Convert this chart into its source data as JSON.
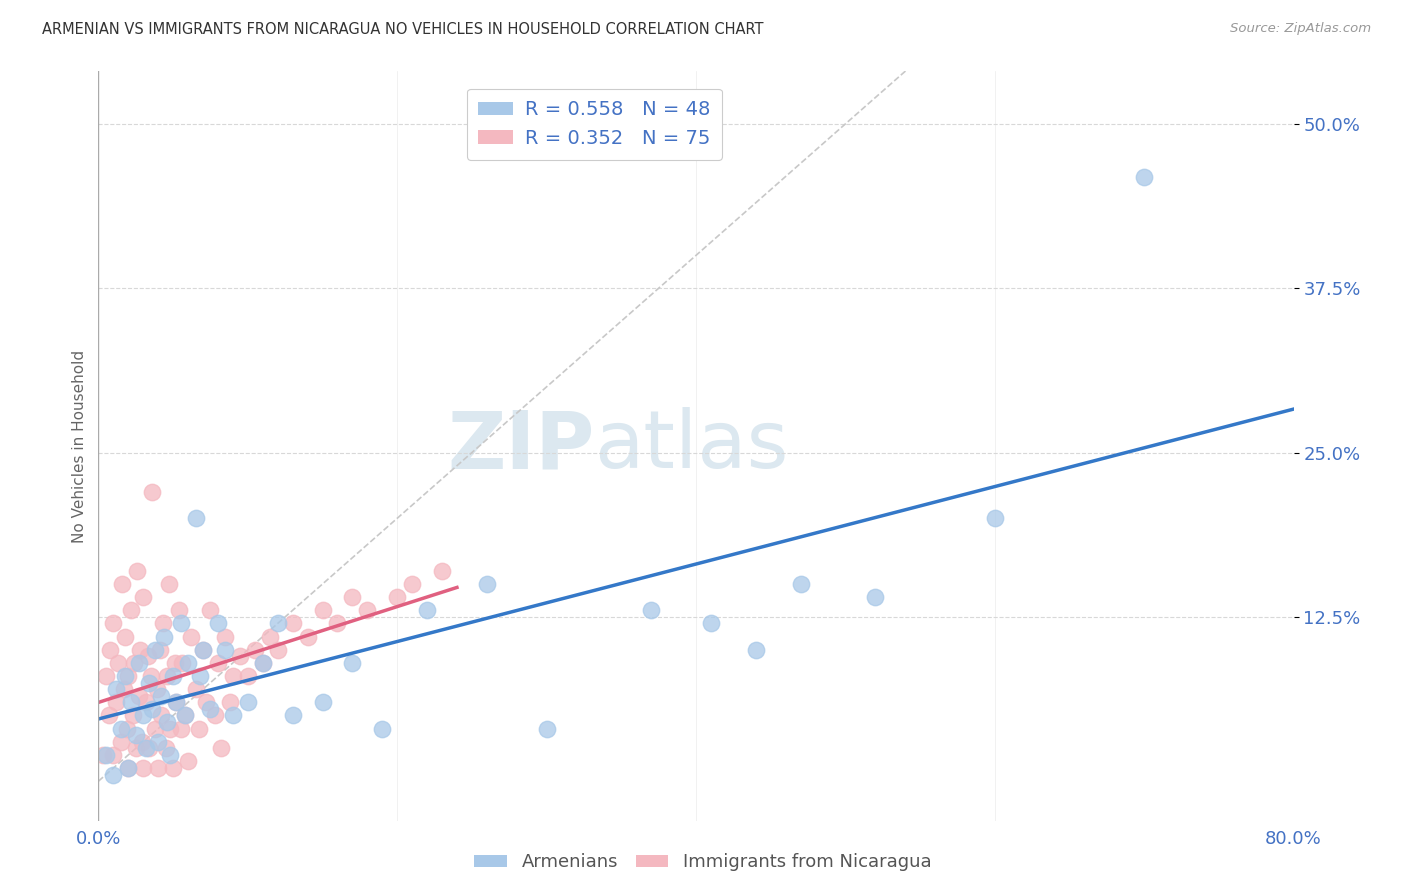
{
  "title": "ARMENIAN VS IMMIGRANTS FROM NICARAGUA NO VEHICLES IN HOUSEHOLD CORRELATION CHART",
  "source": "Source: ZipAtlas.com",
  "ylabel": "No Vehicles in Household",
  "ytick_labels": [
    "12.5%",
    "25.0%",
    "37.5%",
    "50.0%"
  ],
  "ytick_values": [
    0.125,
    0.25,
    0.375,
    0.5
  ],
  "xlim": [
    0.0,
    0.8
  ],
  "ylim": [
    -0.03,
    0.54
  ],
  "armenian_R": 0.558,
  "armenian_N": 48,
  "nicaragua_R": 0.352,
  "nicaragua_N": 75,
  "armenian_color": "#a8c8e8",
  "nicaragua_color": "#f4b8c0",
  "armenian_line_color": "#3478c8",
  "nicaragua_line_color": "#e06080",
  "diagonal_color": "#cccccc",
  "background_color": "#ffffff",
  "title_color": "#333333",
  "axis_label_color": "#666666",
  "tick_color": "#4472c4",
  "legend_label_armenian": "Armenians",
  "legend_label_nicaragua": "Immigrants from Nicaragua",
  "armenian_x": [
    0.005,
    0.01,
    0.012,
    0.015,
    0.018,
    0.02,
    0.022,
    0.025,
    0.027,
    0.03,
    0.032,
    0.034,
    0.036,
    0.038,
    0.04,
    0.042,
    0.044,
    0.046,
    0.048,
    0.05,
    0.052,
    0.055,
    0.058,
    0.06,
    0.065,
    0.068,
    0.07,
    0.075,
    0.08,
    0.085,
    0.09,
    0.1,
    0.11,
    0.12,
    0.13,
    0.15,
    0.17,
    0.19,
    0.22,
    0.26,
    0.3,
    0.37,
    0.41,
    0.44,
    0.47,
    0.52,
    0.6,
    0.7
  ],
  "armenian_y": [
    0.02,
    0.005,
    0.07,
    0.04,
    0.08,
    0.01,
    0.06,
    0.035,
    0.09,
    0.05,
    0.025,
    0.075,
    0.055,
    0.1,
    0.03,
    0.065,
    0.11,
    0.045,
    0.02,
    0.08,
    0.06,
    0.12,
    0.05,
    0.09,
    0.2,
    0.08,
    0.1,
    0.055,
    0.12,
    0.1,
    0.05,
    0.06,
    0.09,
    0.12,
    0.05,
    0.06,
    0.09,
    0.04,
    0.13,
    0.15,
    0.04,
    0.13,
    0.12,
    0.1,
    0.15,
    0.14,
    0.2,
    0.46
  ],
  "nicaragua_x": [
    0.003,
    0.005,
    0.007,
    0.008,
    0.01,
    0.01,
    0.012,
    0.013,
    0.015,
    0.016,
    0.017,
    0.018,
    0.019,
    0.02,
    0.02,
    0.022,
    0.023,
    0.024,
    0.025,
    0.026,
    0.027,
    0.028,
    0.029,
    0.03,
    0.03,
    0.032,
    0.033,
    0.034,
    0.035,
    0.036,
    0.038,
    0.039,
    0.04,
    0.041,
    0.042,
    0.043,
    0.045,
    0.046,
    0.047,
    0.048,
    0.05,
    0.051,
    0.052,
    0.054,
    0.055,
    0.056,
    0.058,
    0.06,
    0.062,
    0.065,
    0.067,
    0.07,
    0.072,
    0.075,
    0.078,
    0.08,
    0.082,
    0.085,
    0.088,
    0.09,
    0.095,
    0.1,
    0.105,
    0.11,
    0.115,
    0.12,
    0.13,
    0.14,
    0.15,
    0.16,
    0.17,
    0.18,
    0.2,
    0.21,
    0.23
  ],
  "nicaragua_y": [
    0.02,
    0.08,
    0.05,
    0.1,
    0.02,
    0.12,
    0.06,
    0.09,
    0.03,
    0.15,
    0.07,
    0.11,
    0.04,
    0.01,
    0.08,
    0.13,
    0.05,
    0.09,
    0.025,
    0.16,
    0.065,
    0.1,
    0.03,
    0.01,
    0.14,
    0.06,
    0.095,
    0.025,
    0.08,
    0.22,
    0.04,
    0.07,
    0.01,
    0.1,
    0.05,
    0.12,
    0.025,
    0.08,
    0.15,
    0.04,
    0.01,
    0.09,
    0.06,
    0.13,
    0.04,
    0.09,
    0.05,
    0.015,
    0.11,
    0.07,
    0.04,
    0.1,
    0.06,
    0.13,
    0.05,
    0.09,
    0.025,
    0.11,
    0.06,
    0.08,
    0.095,
    0.08,
    0.1,
    0.09,
    0.11,
    0.1,
    0.12,
    0.11,
    0.13,
    0.12,
    0.14,
    0.13,
    0.14,
    0.15,
    0.16
  ],
  "arm_line_x_start": 0.0,
  "arm_line_x_end": 0.8,
  "nic_line_x_start": 0.0,
  "nic_line_x_end": 0.24,
  "watermark_zip": "ZIP",
  "watermark_atlas": "atlas"
}
